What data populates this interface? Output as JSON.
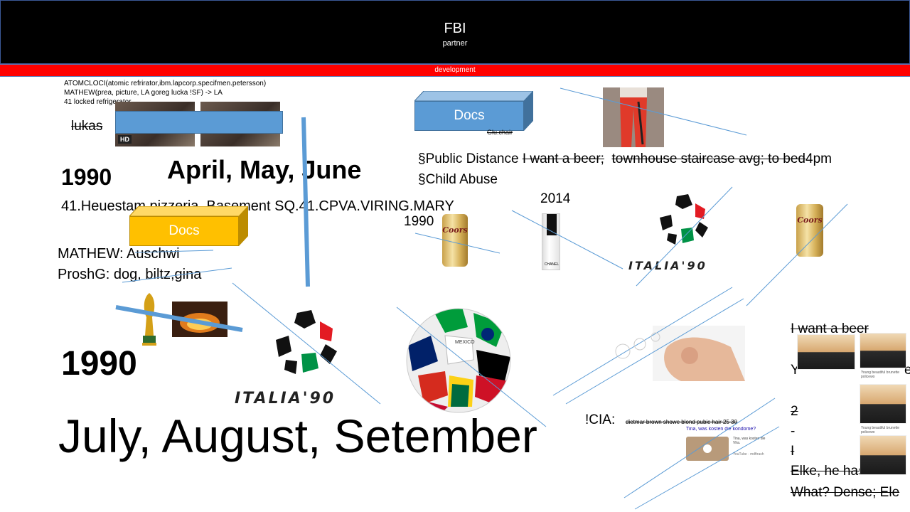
{
  "header": {
    "title": "FBI",
    "subtitle": "partner"
  },
  "banner": {
    "label": "development"
  },
  "notes": {
    "line1": "ATOMCLOCI(atomic refrirator,ibm.lapcorp.specifmen.petersson)",
    "line2": "MATHEW(prea, picture, LA goreg lucka !SF) -> LA",
    "line3": "41 locked refrigerator"
  },
  "video": {
    "badge": "HD"
  },
  "lukas": "lukas",
  "docs_blue": "Docs",
  "glu_chair": "Glu.chair",
  "public_distance": {
    "prefix": "§Public Distance",
    "strike1": "I want a beer;",
    "strike2": "townhouse staircase avg; to bed",
    "suffix": "4pm"
  },
  "child_abuse": "§Child Abuse",
  "year_1990_top": "1990",
  "months_q2": "April, May, June",
  "address": "41.Heuestam pizzeria, Basement SQ.41.CPVA.VIRING.MARY",
  "year_2014": "2014",
  "year_1990_small": "1990",
  "docs_yellow": "Docs",
  "mathew_line": "MATHEW: Auschwi",
  "proshg_line": "ProshG: dog, biltz,gina",
  "year_1990_big": "1990",
  "months_q3": "July, August, Setember",
  "beer_brand": "Coors",
  "bottle_brand": "CHANEL",
  "ball_text": "MEXICO",
  "italia": "ITALIA'90",
  "cia": {
    "label": "!CIA:",
    "strike": "dietmar brown showe blond pubic hair 25 30",
    "video_title": "Tina, was kosten die kondome?",
    "video_desc": "Tina, was kosten die Vha.",
    "video_source": "YouTube · mdftrash"
  },
  "right_col": {
    "line1": "I want a beer",
    "line2": "Y",
    "line2_end": "e",
    "line3": "2",
    "line4": "-",
    "line5": "I",
    "line6": "Elke, he has one",
    "line7": "What? Dense; Ele",
    "thumb_caption": "Young beautiful brunette policewo"
  },
  "colors": {
    "header_bg": "#000000",
    "banner_bg": "#ff0000",
    "docs_blue": "#5b9bd5",
    "docs_yellow": "#ffc000",
    "line_blue": "#5b9bd5"
  }
}
